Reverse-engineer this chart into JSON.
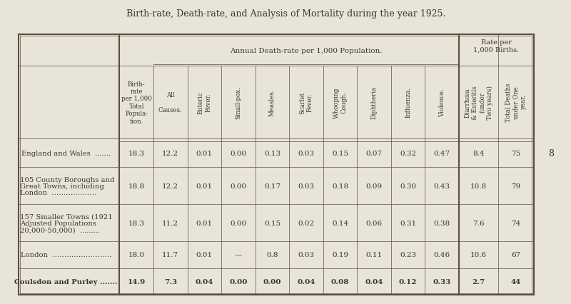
{
  "title": "Birth-rate, Death-rate, and Analysis of Mortality during the year 1925.",
  "bg_color": "#e8e4d8",
  "table_bg": "#e8e4d8",
  "page_number": "8",
  "col_groups": [
    {
      "label": "",
      "cols": 1
    },
    {
      "label": "",
      "cols": 1
    },
    {
      "label": "Annual Death-rate per 1,000 Population.",
      "cols": 9
    },
    {
      "label": "Rate per\n1,000 Births.",
      "cols": 2
    }
  ],
  "col_headers": [
    "Birth-\nrate\nper 1,000\nTotal\nPopula-\ntion.",
    "All\n\nCauses.",
    "Enteric\nFever.",
    "Small-pox.",
    "Measles.",
    "Scarlet\nFever.",
    "Whooping\nCough.",
    "Diphtheria",
    "Influenza.",
    "Violence.",
    "Diarrhœa\n& Enteritis\n(under\nTwo years)",
    "Total Deaths\nunder One\nyear."
  ],
  "rows": [
    {
      "label": "England and Wales  .......",
      "bold": false,
      "values": [
        "18.3",
        "12.2",
        "0.01",
        "0.00",
        "0.13",
        "0.03",
        "0.15",
        "0.07",
        "0.32",
        "0.47",
        "8.4",
        "75"
      ]
    },
    {
      "label": "105 County Boroughs and\n  Great Towns, including\n  London  ……………….",
      "bold": false,
      "values": [
        "18.8",
        "12.2",
        "0.01",
        "0.00",
        "0.17",
        "0.03",
        "0.18",
        "0.09",
        "0.30",
        "0.43",
        "10.8",
        "79"
      ]
    },
    {
      "label": "157 Smaller Towns (1921\n  Adjusted Populations\n  20,000-50,000)  .........",
      "bold": false,
      "values": [
        "18.3",
        "11.2",
        "0.01",
        "0.00",
        "0.15",
        "0.02",
        "0.14",
        "0.06",
        "0.31",
        "0.38",
        "7.6",
        "74"
      ]
    },
    {
      "label": "London  …………………….",
      "bold": false,
      "values": [
        "18.0",
        "11.7",
        "0.01",
        "—",
        "0.8",
        "0.03",
        "0.19",
        "0.11",
        "0.23",
        "0.46",
        "10.6",
        "67"
      ]
    },
    {
      "label": "Coulsdon and Purley .......",
      "bold": true,
      "values": [
        "14.9",
        "7.3",
        "0.04",
        "0.00",
        "0.00",
        "0.04",
        "0.08",
        "0.04",
        "0.12",
        "0.33",
        "2.7",
        "44"
      ]
    }
  ],
  "text_color": "#3a3530",
  "line_color": "#5a5040",
  "header_fontsize": 6.2,
  "data_fontsize": 7.5,
  "title_fontsize": 9.0,
  "row_label_fontsize": 7.2
}
